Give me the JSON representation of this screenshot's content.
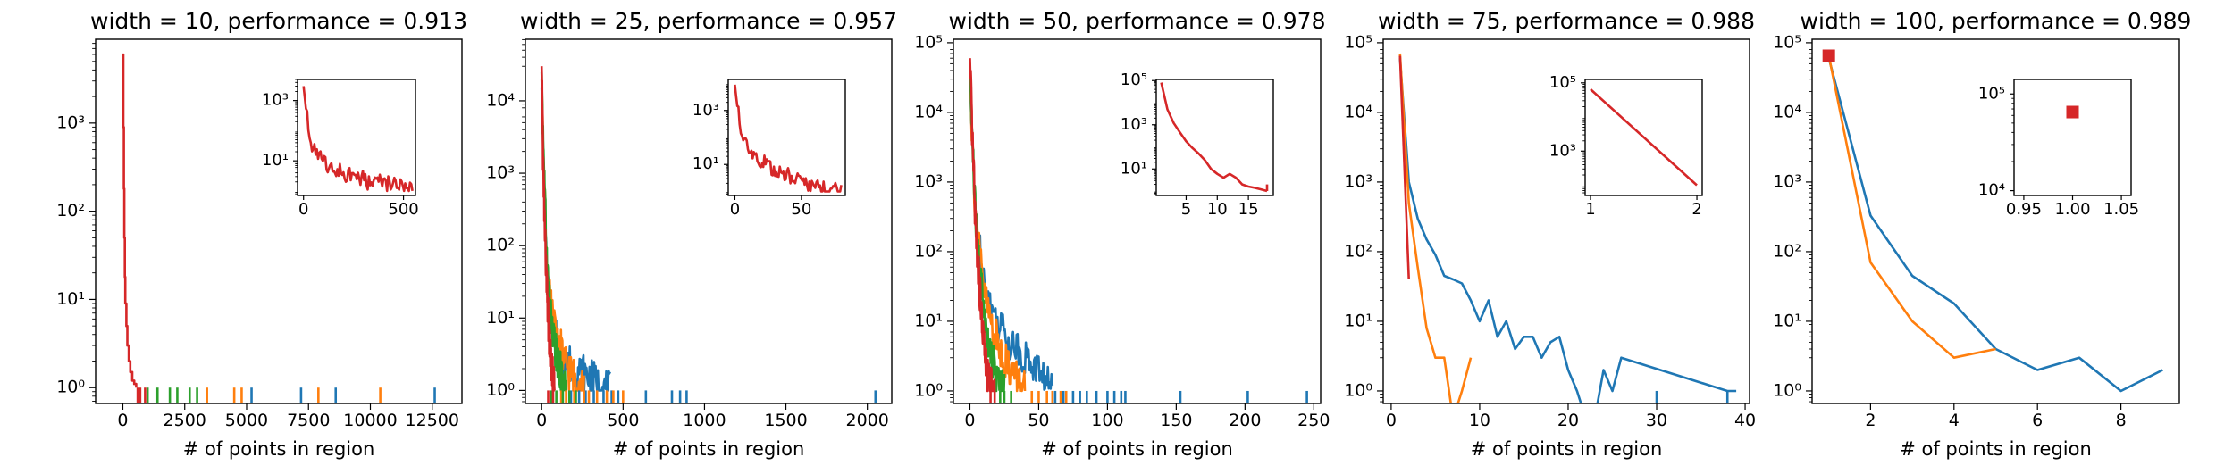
{
  "colors": {
    "c0": "#1f77b4",
    "c1": "#ff7f0e",
    "c2": "#2ca02c",
    "c3": "#d62728"
  },
  "chart_data": [
    {
      "type": "line",
      "title": "width = 10, performance = 0.913",
      "xlabel": "# of points in region",
      "xlim": [
        -1100,
        13700
      ],
      "ylim_log10": [
        -0.18,
        3.95
      ],
      "xticks": [
        0,
        2500,
        5000,
        7500,
        10000,
        12500
      ],
      "xtick_labels": [
        "0",
        "2500",
        "5000",
        "7500",
        "10000",
        "12500"
      ],
      "yticks_log10": [
        0,
        1,
        2,
        3
      ],
      "ytick_labels": [
        "10⁰",
        "10¹",
        "10²",
        "10³"
      ],
      "spikes_y": 1,
      "spikes": [
        {
          "color": "c0",
          "x": [
            5200,
            7200,
            8600,
            12600
          ]
        },
        {
          "color": "c1",
          "x": [
            3400,
            4500,
            4800,
            7900,
            10400
          ]
        },
        {
          "color": "c2",
          "x": [
            1000,
            1400,
            1900,
            2200,
            2700,
            3000
          ]
        },
        {
          "color": "c3",
          "x": [
            600,
            700,
            900
          ]
        }
      ],
      "series": [
        {
          "color": "c3",
          "style": "step",
          "x": [
            0,
            20,
            40,
            60,
            80,
            100,
            140,
            180,
            240,
            300,
            380,
            460,
            540
          ],
          "y": [
            6000,
            900,
            180,
            50,
            18,
            9,
            5,
            3,
            2,
            1.5,
            1.2,
            1.1,
            1
          ]
        }
      ],
      "inset": {
        "type": "line",
        "xlim": [
          -30,
          560
        ],
        "ylim_log10": [
          -0.15,
          3.7
        ],
        "xticks": [
          0,
          500
        ],
        "xtick_labels": [
          "0",
          "500"
        ],
        "yticks_log10": [
          1,
          3
        ],
        "ytick_labels": [
          "10¹",
          "10³"
        ],
        "series": [
          {
            "color": "c3",
            "style": "noisy",
            "x": [
              0,
              10,
              20,
              30,
              40,
              60,
              80,
              100,
              130,
              160,
              200,
              240,
              280,
              320,
              360,
              400,
              440,
              480,
              520,
              545
            ],
            "y": [
              3000,
              700,
              200,
              80,
              40,
              20,
              12,
              9,
              7,
              5,
              4,
              3,
              3,
              2,
              2,
              2,
              1.5,
              1.5,
              1.2,
              1
            ]
          }
        ]
      }
    },
    {
      "type": "line",
      "title": "width = 25, performance = 0.957",
      "xlabel": "# of points in region",
      "xlim": [
        -100,
        2150
      ],
      "ylim_log10": [
        -0.18,
        4.85
      ],
      "xticks": [
        0,
        500,
        1000,
        1500,
        2000
      ],
      "xtick_labels": [
        "0",
        "500",
        "1000",
        "1500",
        "2000"
      ],
      "yticks_log10": [
        0,
        1,
        2,
        3,
        4
      ],
      "ytick_labels": [
        "10⁰",
        "10¹",
        "10²",
        "10³",
        "10⁴"
      ],
      "spikes_y": 1,
      "spikes": [
        {
          "color": "c0",
          "x": [
            180,
            230,
            270,
            320,
            380,
            430,
            470,
            640,
            800,
            850,
            890,
            2050
          ]
        },
        {
          "color": "c1",
          "x": [
            120,
            150,
            200,
            260,
            290,
            340,
            400,
            440,
            500
          ]
        },
        {
          "color": "c2",
          "x": [
            60,
            90,
            130,
            170,
            210
          ]
        },
        {
          "color": "c3",
          "x": [
            40,
            70
          ]
        }
      ],
      "series": [
        {
          "color": "c0",
          "style": "noisy",
          "x": [
            0,
            10,
            20,
            30,
            40,
            60,
            80,
            100,
            130,
            160,
            200,
            250,
            300,
            350,
            420
          ],
          "y": [
            15000,
            2000,
            300,
            60,
            20,
            10,
            6,
            4,
            3,
            2.5,
            2,
            1.8,
            1.5,
            1.2,
            1
          ]
        },
        {
          "color": "c1",
          "style": "noisy",
          "x": [
            0,
            10,
            20,
            30,
            40,
            60,
            80,
            100,
            130,
            160,
            200,
            260
          ],
          "y": [
            20000,
            2500,
            350,
            70,
            25,
            12,
            7,
            5,
            3,
            2,
            1.5,
            1
          ]
        },
        {
          "color": "c2",
          "style": "noisy",
          "x": [
            0,
            10,
            20,
            30,
            45,
            60,
            80,
            110,
            150
          ],
          "y": [
            25000,
            2800,
            400,
            80,
            20,
            8,
            4,
            2,
            1
          ]
        },
        {
          "color": "c3",
          "style": "noisy",
          "x": [
            0,
            5,
            10,
            20,
            30,
            45,
            60,
            80
          ],
          "y": [
            30000,
            6000,
            1000,
            150,
            30,
            6,
            2,
            1
          ]
        }
      ],
      "inset": {
        "type": "line",
        "xlim": [
          -5,
          83
        ],
        "ylim_log10": [
          -0.15,
          4.15
        ],
        "xticks": [
          0,
          50
        ],
        "xtick_labels": [
          "0",
          "50"
        ],
        "yticks_log10": [
          1,
          3
        ],
        "ytick_labels": [
          "10¹",
          "10³"
        ],
        "series": [
          {
            "color": "c3",
            "style": "noisy",
            "x": [
              0,
              1,
              2,
              3,
              4,
              5,
              7,
              9,
              11,
              13,
              16,
              19,
              22,
              26,
              30,
              35,
              40,
              45,
              50,
              55,
              60,
              65,
              70,
              75,
              80
            ],
            "y": [
              9000,
              3000,
              1200,
              600,
              300,
              180,
              100,
              60,
              40,
              30,
              20,
              15,
              12,
              8,
              6,
              5,
              4,
              3,
              2.5,
              2,
              1.8,
              1.5,
              1.3,
              1.2,
              1
            ]
          }
        ]
      }
    },
    {
      "type": "line",
      "title": "width = 50, performance = 0.978",
      "xlabel": "# of points in region",
      "xlim": [
        -12,
        255
      ],
      "ylim_log10": [
        -0.18,
        5.05
      ],
      "xticks": [
        0,
        50,
        100,
        150,
        200,
        250
      ],
      "xtick_labels": [
        "0",
        "50",
        "100",
        "150",
        "200",
        "250"
      ],
      "yticks_log10": [
        0,
        1,
        2,
        3,
        4,
        5
      ],
      "ytick_labels": [
        "10⁰",
        "10¹",
        "10²",
        "10³",
        "10⁴",
        "10⁵"
      ],
      "spikes_y": 1,
      "spikes": [
        {
          "color": "c0",
          "x": [
            62,
            68,
            75,
            80,
            85,
            92,
            100,
            105,
            110,
            113,
            153,
            202,
            245
          ]
        },
        {
          "color": "c1",
          "x": [
            45,
            50,
            56,
            60,
            66,
            70
          ]
        },
        {
          "color": "c2",
          "x": [
            22,
            25,
            30
          ]
        },
        {
          "color": "c3",
          "x": [
            15,
            18
          ]
        }
      ],
      "series": [
        {
          "color": "c0",
          "style": "noisy",
          "x": [
            0,
            1,
            2,
            3,
            4,
            6,
            8,
            10,
            13,
            16,
            20,
            25,
            30,
            35,
            40,
            45,
            50,
            55,
            60
          ],
          "y": [
            30000,
            8000,
            2500,
            900,
            400,
            150,
            80,
            45,
            25,
            15,
            10,
            7,
            5,
            4,
            3,
            2.5,
            2,
            1.5,
            1
          ]
        },
        {
          "color": "c1",
          "style": "noisy",
          "x": [
            0,
            1,
            2,
            3,
            4,
            6,
            8,
            10,
            13,
            16,
            20,
            25,
            30,
            35,
            40
          ],
          "y": [
            40000,
            9000,
            2800,
            1000,
            400,
            140,
            60,
            30,
            15,
            9,
            5,
            3,
            2,
            1.5,
            1
          ]
        },
        {
          "color": "c2",
          "style": "noisy",
          "x": [
            0,
            1,
            2,
            3,
            4,
            6,
            8,
            10,
            13,
            16,
            20,
            25
          ],
          "y": [
            50000,
            10000,
            3000,
            1000,
            350,
            100,
            40,
            15,
            6,
            3,
            1.5,
            1
          ]
        },
        {
          "color": "c3",
          "style": "noisy",
          "x": [
            0,
            1,
            2,
            3,
            4,
            6,
            8,
            10,
            12,
            15,
            18
          ],
          "y": [
            60000,
            12000,
            3000,
            900,
            300,
            60,
            15,
            5,
            2,
            1.3,
            1
          ]
        }
      ],
      "inset": {
        "type": "line",
        "xlim": [
          0.2,
          19
        ],
        "ylim_log10": [
          -0.2,
          5.05
        ],
        "xticks": [
          5,
          10,
          15
        ],
        "xtick_labels": [
          "5",
          "10",
          "15"
        ],
        "yticks_log10": [
          1,
          3,
          5
        ],
        "ytick_labels": [
          "10¹",
          "10³",
          "10⁵"
        ],
        "series": [
          {
            "color": "c3",
            "style": "line",
            "x": [
              1,
              2,
              3,
              4,
              5,
              6,
              7,
              8,
              9,
              10,
              11,
              12,
              13,
              14,
              15,
              16,
              17,
              18
            ],
            "y": [
              80000,
              5000,
              1200,
              450,
              180,
              90,
              50,
              25,
              10,
              6,
              4,
              6,
              4,
              2,
              1.6,
              1.4,
              1.2,
              1
            ]
          },
          {
            "color": "c3",
            "style": "line",
            "x": [
              18,
              18
            ],
            "y": [
              1,
              2
            ]
          }
        ]
      }
    },
    {
      "type": "line",
      "title": "width = 75, performance = 0.988",
      "xlabel": "# of points in region",
      "xlim": [
        -0.9,
        40.5
      ],
      "ylim_log10": [
        -0.18,
        5.05
      ],
      "xticks": [
        0,
        10,
        20,
        30,
        40
      ],
      "xtick_labels": [
        "0",
        "10",
        "20",
        "30",
        "40"
      ],
      "yticks_log10": [
        0,
        1,
        2,
        3,
        4,
        5
      ],
      "ytick_labels": [
        "10⁰",
        "10¹",
        "10²",
        "10³",
        "10⁴",
        "10⁵"
      ],
      "spikes_y": 1,
      "spikes": [
        {
          "color": "c0",
          "x": [
            30,
            38
          ]
        }
      ],
      "series": [
        {
          "color": "c0",
          "style": "line",
          "x": [
            1,
            2,
            3,
            4,
            5,
            6,
            7,
            8,
            9,
            10,
            11,
            12,
            13,
            14,
            15,
            16,
            17,
            18,
            19,
            20,
            21,
            22,
            23,
            24,
            25,
            26,
            38,
            39
          ],
          "y": [
            60000,
            1000,
            300,
            150,
            90,
            45,
            40,
            35,
            20,
            10,
            20,
            6,
            10,
            4,
            6,
            6,
            3,
            5,
            6,
            2,
            1,
            0.4,
            0.4,
            2,
            1,
            3,
            1,
            1
          ]
        },
        {
          "color": "c1",
          "style": "line",
          "x": [
            1,
            2,
            3,
            4,
            5,
            6,
            7,
            8,
            9
          ],
          "y": [
            70000,
            500,
            60,
            8,
            3,
            3,
            0.4,
            1,
            3
          ]
        },
        {
          "color": "c3",
          "style": "line",
          "x": [
            1,
            2
          ],
          "y": [
            65000,
            40
          ]
        }
      ],
      "inset": {
        "type": "line",
        "xlim": [
          0.95,
          2.05
        ],
        "ylim_log10": [
          1.7,
          5.1
        ],
        "xticks": [
          1,
          2
        ],
        "xtick_labels": [
          "1",
          "2"
        ],
        "yticks_log10": [
          3,
          5
        ],
        "ytick_labels": [
          "10³",
          "10⁵"
        ],
        "series": [
          {
            "color": "c3",
            "style": "line",
            "x": [
              1,
              2
            ],
            "y": [
              65000,
              100
            ]
          }
        ]
      }
    },
    {
      "type": "line",
      "title": "width = 100, performance = 0.989",
      "xlabel": "# of points in region",
      "xlim": [
        0.6,
        9.4
      ],
      "ylim_log10": [
        -0.18,
        5.05
      ],
      "xticks": [
        2,
        4,
        6,
        8
      ],
      "xtick_labels": [
        "2",
        "4",
        "6",
        "8"
      ],
      "yticks_log10": [
        0,
        1,
        2,
        3,
        4,
        5
      ],
      "ytick_labels": [
        "10⁰",
        "10¹",
        "10²",
        "10³",
        "10⁴",
        "10⁵"
      ],
      "spikes_y": 1,
      "spikes": [],
      "series": [
        {
          "color": "c0",
          "style": "line",
          "x": [
            1,
            2,
            3,
            4,
            5,
            6,
            7,
            8,
            9
          ],
          "y": [
            60000,
            330,
            45,
            18,
            4,
            2,
            3,
            1,
            2
          ]
        },
        {
          "color": "c1",
          "style": "line",
          "x": [
            1,
            2,
            3,
            4,
            5
          ],
          "y": [
            65000,
            70,
            10,
            3,
            4
          ]
        }
      ],
      "markers": [
        {
          "color": "c3",
          "x": 1,
          "y": 65000
        }
      ],
      "inset": {
        "type": "scatter",
        "xlim": [
          0.94,
          1.06
        ],
        "ylim_log10": [
          3.95,
          5.15
        ],
        "xticks": [
          0.95,
          1.0,
          1.05
        ],
        "xtick_labels": [
          "0.95",
          "1.00",
          "1.05"
        ],
        "yticks_log10": [
          4,
          5
        ],
        "ytick_labels": [
          "10⁴",
          "10⁵"
        ],
        "series": [],
        "markers": [
          {
            "color": "c3",
            "x": 1,
            "y": 65000
          }
        ]
      }
    }
  ]
}
